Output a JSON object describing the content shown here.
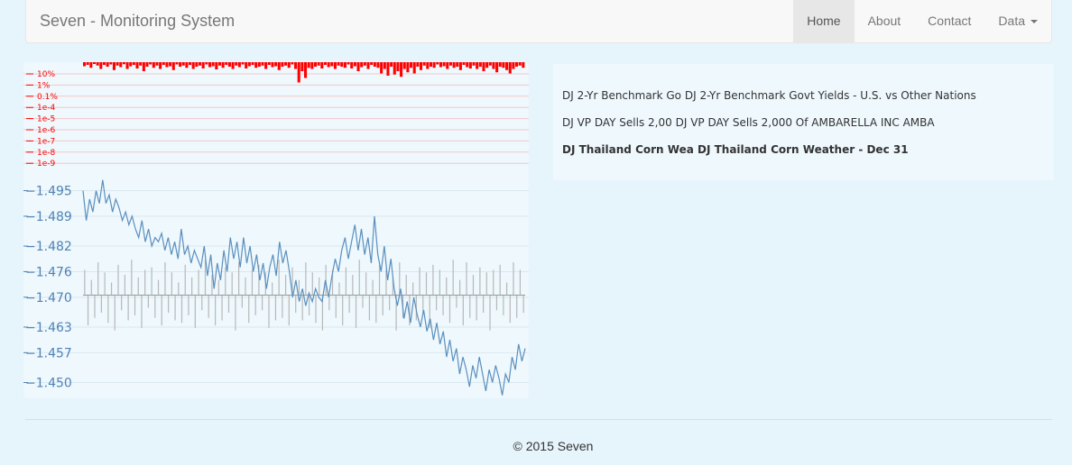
{
  "navbar": {
    "brand": "Seven - Monitoring System",
    "items": [
      {
        "label": "Home",
        "active": true
      },
      {
        "label": "About",
        "active": false
      },
      {
        "label": "Contact",
        "active": false
      },
      {
        "label": "Data",
        "active": false,
        "dropdown": true
      }
    ]
  },
  "news": [
    {
      "short": "DJ 2-Yr Benchmark Go",
      "headline": "DJ 2-Yr Benchmark Govt Yields - U.S. vs Other Nations",
      "bold": false
    },
    {
      "short": "DJ VP DAY Sells 2,00",
      "headline": "DJ VP DAY Sells 2,000 Of AMBARELLA INC AMBA",
      "bold": false
    },
    {
      "short": "DJ Thailand Corn Wea",
      "headline": "DJ Thailand Corn Weather - Dec 31",
      "bold": true
    }
  ],
  "footer": {
    "text": "© 2015 Seven"
  },
  "colors": {
    "line": "#5b8fbd",
    "volume": "#b8b8b8",
    "pvalue": "#ff0000",
    "axis_text": "#4f83b5"
  },
  "chart_data": [
    {
      "type": "bar",
      "title": "",
      "scale": "log",
      "tick_labels": [
        "10%",
        "1%",
        "0.1%",
        "1e-4",
        "1e-5",
        "1e-6",
        "1e-7",
        "1e-8",
        "1e-9"
      ],
      "color": "#ff0000",
      "values": [
        0.18,
        0.12,
        0.25,
        0.08,
        0.15,
        0.3,
        0.12,
        0.2,
        0.1,
        0.35,
        0.15,
        0.22,
        0.09,
        0.3,
        0.18,
        0.12,
        0.28,
        0.15,
        0.4,
        0.2,
        0.1,
        0.25,
        0.15,
        0.3,
        0.12,
        0.22,
        0.18,
        0.35,
        0.1,
        0.2,
        0.15,
        0.25,
        0.12,
        0.3,
        0.2,
        0.15,
        0.28,
        0.1,
        0.22,
        0.18,
        0.32,
        0.15,
        0.25,
        0.12,
        0.2,
        0.3,
        0.15,
        0.22,
        0.1,
        0.28,
        0.18,
        0.12,
        0.25,
        0.2,
        0.15,
        0.3,
        0.12,
        0.22,
        0.18,
        0.35,
        0.2,
        0.15,
        0.25,
        0.1,
        0.3,
        0.9,
        0.4,
        0.7,
        0.25,
        0.3,
        0.2,
        0.15,
        0.28,
        0.12,
        0.22,
        0.18,
        0.3,
        0.15,
        0.2,
        0.25,
        0.1,
        0.28,
        0.18,
        0.4,
        0.22,
        0.15,
        0.3,
        0.12,
        0.2,
        0.25,
        0.5,
        0.3,
        0.6,
        0.2,
        0.55,
        0.4,
        0.65,
        0.3,
        0.45,
        0.25,
        0.5,
        0.2,
        0.35,
        0.15,
        0.3,
        0.2,
        0.25,
        0.1,
        0.22,
        0.18,
        0.3,
        0.15,
        0.25,
        0.2,
        0.35,
        0.12,
        0.22,
        0.28,
        0.15,
        0.3,
        0.2,
        0.4,
        0.25,
        0.15,
        0.3,
        0.45,
        0.2,
        0.25,
        0.35,
        0.5,
        0.3,
        0.2,
        0.15,
        0.25
      ]
    },
    {
      "type": "line",
      "title": "",
      "ylim": [
        -1.4985,
        -1.4465
      ],
      "y_ticks": [
        -1.495,
        -1.489,
        -1.482,
        -1.476,
        -1.47,
        -1.463,
        -1.457,
        -1.45
      ],
      "y_tick_labels": [
        "−1.495",
        "−1.489",
        "−1.482",
        "−1.476",
        "−1.470",
        "−1.463",
        "−1.457",
        "−1.450"
      ],
      "y_inverted": true,
      "grid": true,
      "color": "#5b8fbd",
      "values": [
        -1.495,
        -1.488,
        -1.493,
        -1.49,
        -1.495,
        -1.492,
        -1.4975,
        -1.492,
        -1.494,
        -1.49,
        -1.493,
        -1.491,
        -1.488,
        -1.49,
        -1.487,
        -1.489,
        -1.486,
        -1.484,
        -1.488,
        -1.483,
        -1.486,
        -1.482,
        -1.484,
        -1.483,
        -1.485,
        -1.481,
        -1.484,
        -1.48,
        -1.483,
        -1.479,
        -1.486,
        -1.48,
        -1.482,
        -1.478,
        -1.481,
        -1.479,
        -1.477,
        -1.482,
        -1.475,
        -1.48,
        -1.472,
        -1.478,
        -1.474,
        -1.481,
        -1.476,
        -1.484,
        -1.479,
        -1.483,
        -1.477,
        -1.484,
        -1.478,
        -1.482,
        -1.476,
        -1.48,
        -1.474,
        -1.478,
        -1.472,
        -1.477,
        -1.48,
        -1.475,
        -1.483,
        -1.478,
        -1.481,
        -1.476,
        -1.47,
        -1.474,
        -1.469,
        -1.472,
        -1.468,
        -1.471,
        -1.469,
        -1.472,
        -1.47,
        -1.469,
        -1.474,
        -1.47,
        -1.475,
        -1.479,
        -1.476,
        -1.481,
        -1.484,
        -1.479,
        -1.483,
        -1.487,
        -1.481,
        -1.486,
        -1.48,
        -1.484,
        -1.478,
        -1.489,
        -1.48,
        -1.476,
        -1.482,
        -1.474,
        -1.479,
        -1.472,
        -1.468,
        -1.472,
        -1.465,
        -1.469,
        -1.464,
        -1.47,
        -1.466,
        -1.463,
        -1.467,
        -1.462,
        -1.465,
        -1.46,
        -1.464,
        -1.459,
        -1.462,
        -1.456,
        -1.46,
        -1.455,
        -1.458,
        -1.452,
        -1.456,
        -1.453,
        -1.449,
        -1.454,
        -1.451,
        -1.456,
        -1.452,
        -1.448,
        -1.453,
        -1.45,
        -1.454,
        -1.451,
        -1.447,
        -1.452,
        -1.45,
        -1.456,
        -1.453,
        -1.459,
        -1.455,
        -1.458
      ]
    },
    {
      "type": "bar",
      "title": "",
      "baseline": -1.4705,
      "color": "#b8b8b8",
      "values": [
        1.0,
        -1.2,
        0.6,
        -0.9,
        1.3,
        -0.7,
        0.9,
        -1.1,
        0.5,
        -1.4,
        1.2,
        -0.6,
        0.8,
        -1.0,
        1.4,
        -0.8,
        0.7,
        -1.3,
        1.0,
        -0.5,
        1.1,
        -0.9,
        0.6,
        -1.2,
        1.3,
        -0.7,
        0.9,
        -1.0,
        0.5,
        -1.1,
        1.2,
        -0.8,
        0.7,
        -1.3,
        1.0,
        -0.6,
        1.4,
        -0.9,
        0.8,
        -1.2,
        0.6,
        -1.0,
        1.1,
        -0.7,
        0.9,
        -1.4,
        1.3,
        -0.5,
        0.7,
        -1.1,
        1.0,
        -0.8,
        1.2,
        -0.6,
        0.9,
        -1.3,
        0.5,
        -1.0,
        1.4,
        -0.9,
        0.8,
        -1.2,
        1.1,
        -0.7,
        0.6,
        -1.0,
        1.3,
        -0.8,
        0.9,
        -1.1,
        0.7,
        -1.4,
        1.2,
        -0.6,
        1.0,
        -0.9,
        0.5,
        -1.2,
        1.1,
        -0.7,
        0.8,
        -1.3,
        1.4,
        -0.5,
        0.9,
        -1.0,
        0.6,
        -1.1,
        1.2,
        -0.8,
        1.0,
        -0.6,
        0.7,
        -1.4,
        1.3,
        -0.9,
        0.8,
        -1.2,
        0.5,
        -1.0,
        1.1,
        -0.7,
        0.9,
        -1.3,
        1.2,
        -0.6,
        1.0,
        -0.8,
        0.7,
        -1.1,
        1.4,
        -0.5,
        0.6,
        -1.2,
        1.3,
        -0.9,
        0.8,
        -1.0,
        1.1,
        -0.7,
        0.9,
        -1.4,
        1.0,
        -0.6,
        1.2,
        -0.8,
        0.5,
        -1.1,
        1.3,
        -0.9,
        1.0,
        -0.7
      ]
    }
  ]
}
